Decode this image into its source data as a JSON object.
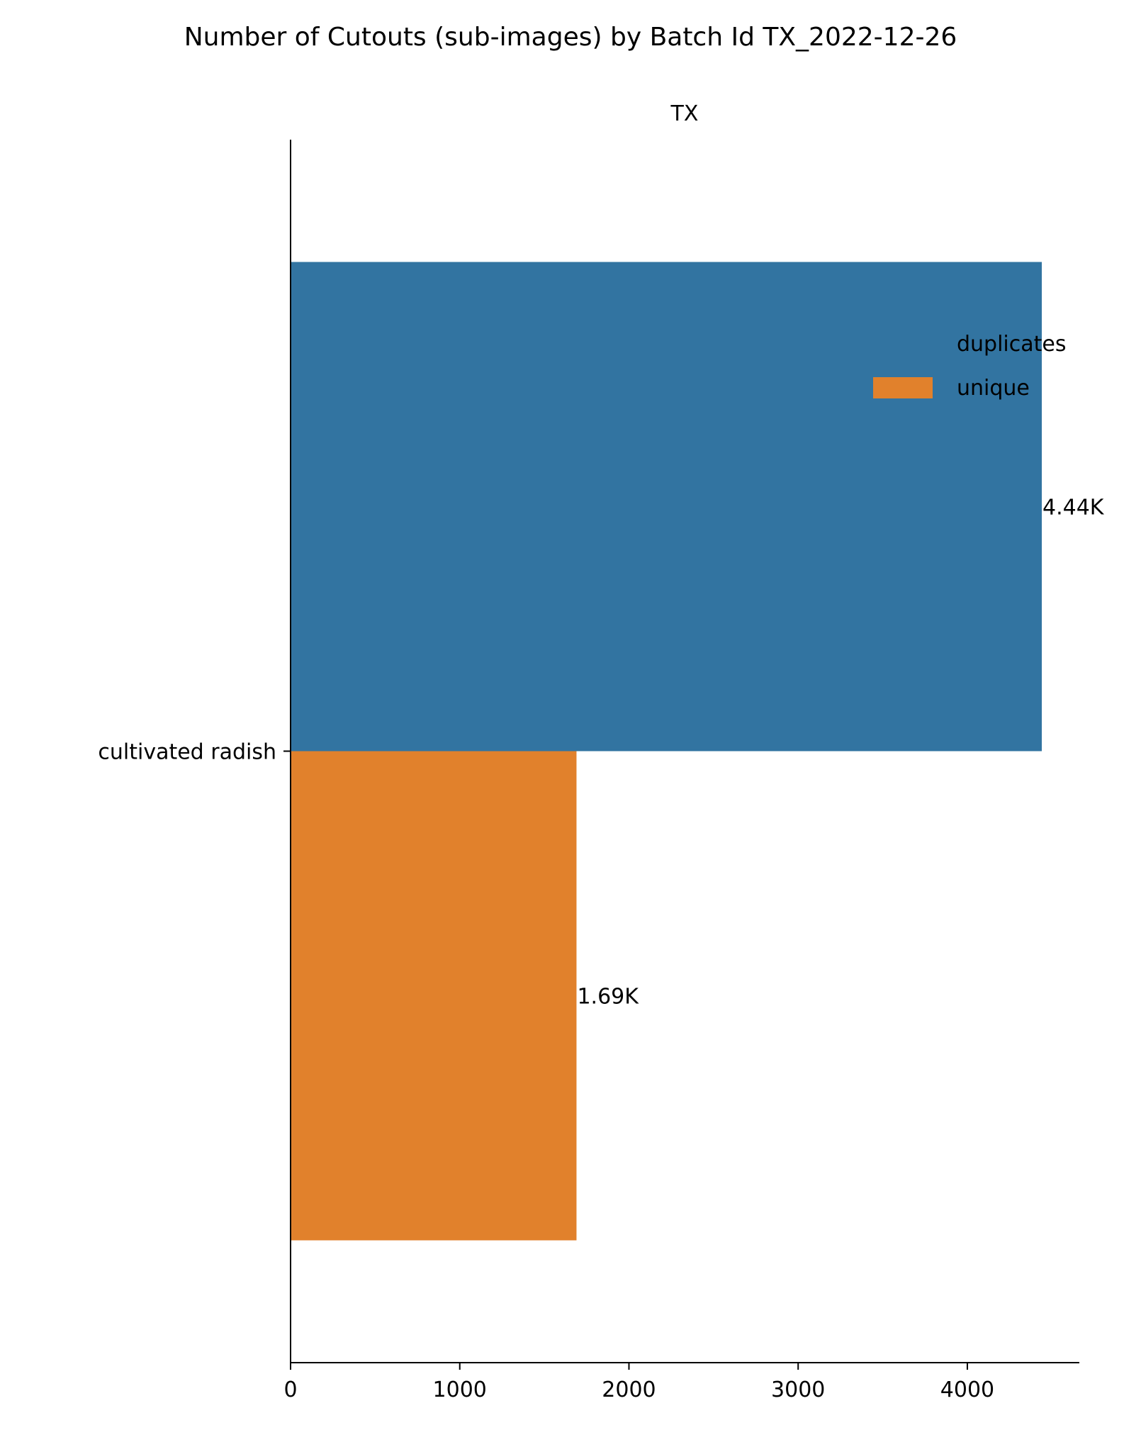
{
  "chart_data": {
    "type": "bar",
    "orientation": "horizontal",
    "title": "Number of Cutouts (sub-images) by Batch Id TX_2022-12-26",
    "facet_title": "TX",
    "xlabel": "",
    "ylabel": "",
    "categories": [
      "cultivated radish"
    ],
    "series": [
      {
        "name": "duplicates",
        "color": "#3274a1",
        "values": [
          4440
        ],
        "label": "4.44K"
      },
      {
        "name": "unique",
        "color": "#e1812c",
        "values": [
          1690
        ],
        "label": "1.69K"
      }
    ],
    "xlim": [
      0,
      4662
    ],
    "x_ticks": [
      0,
      1000,
      2000,
      3000,
      4000
    ],
    "x_tick_labels": [
      "0",
      "1000",
      "2000",
      "3000",
      "4000"
    ],
    "grid": false,
    "legend": {
      "placement": "right",
      "entries": [
        {
          "name": "duplicates",
          "swatch_visible": false
        },
        {
          "name": "unique",
          "swatch_visible": true
        }
      ]
    }
  }
}
